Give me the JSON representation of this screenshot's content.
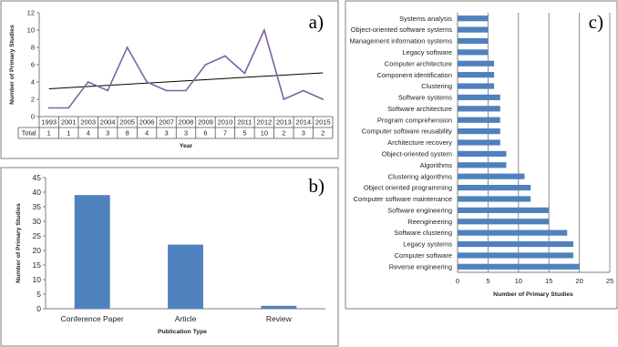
{
  "chart_data": [
    {
      "id": "a",
      "type": "line",
      "panel_label": "a)",
      "xlabel": "Year",
      "ylabel": "Number of Primary Studies",
      "ylim": [
        0,
        12
      ],
      "yticks": [
        "0",
        "2",
        "4",
        "6",
        "8",
        "10",
        "12"
      ],
      "categories": [
        "1993",
        "2001",
        "2003",
        "2004",
        "2005",
        "2006",
        "2007",
        "2008",
        "2009",
        "2010",
        "2011",
        "2012",
        "2013",
        "2014",
        "2015"
      ],
      "values": [
        1,
        1,
        4,
        3,
        8,
        4,
        3,
        3,
        6,
        7,
        5,
        10,
        2,
        3,
        2
      ],
      "table_row_label": "Total",
      "table_values": [
        "1",
        "1",
        "4",
        "3",
        "8",
        "4",
        "3",
        "3",
        "6",
        "7",
        "5",
        "10",
        "2",
        "3",
        "2"
      ],
      "trendline": true,
      "line_color": "#8064a2",
      "trend_color": "#000000"
    },
    {
      "id": "b",
      "type": "bar",
      "panel_label": "b)",
      "xlabel": "Publication Type",
      "ylabel": "Number of Primary Studies",
      "ylim": [
        0,
        45
      ],
      "yticks": [
        "0",
        "5",
        "10",
        "15",
        "20",
        "25",
        "30",
        "35",
        "40",
        "45"
      ],
      "categories": [
        "Conference Paper",
        "Article",
        "Review"
      ],
      "values": [
        39,
        22,
        1
      ],
      "bar_color": "#4f81bd"
    },
    {
      "id": "c",
      "type": "bar",
      "orientation": "horizontal",
      "panel_label": "c)",
      "xlabel": "Number of Primary Studies",
      "xlim": [
        0,
        25
      ],
      "xticks": [
        "0",
        "5",
        "10",
        "15",
        "20",
        "25"
      ],
      "categories": [
        "Systems analysis",
        "Object-oriented software systems",
        "Management information systems",
        "Legacy software",
        "Computer architecture",
        "Component identification",
        "Clustering",
        "Software systems",
        "Software architecture",
        "Program comprehension",
        "Computer software reusability",
        "Architecture recovery",
        "Object-oriented system",
        "Algorithms",
        "Clustering algorithms",
        "Object oriented programming",
        "Computer software maintenance",
        "Software engineering",
        "Reengineering",
        "Software clustering",
        "Legacy systems",
        "Computer software",
        "Reverse engineering"
      ],
      "values": [
        5,
        5,
        5,
        5,
        6,
        6,
        6,
        7,
        7,
        7,
        7,
        7,
        8,
        8,
        11,
        12,
        12,
        15,
        15,
        18,
        19,
        19,
        20
      ],
      "bar_color": "#4f81bd"
    }
  ]
}
